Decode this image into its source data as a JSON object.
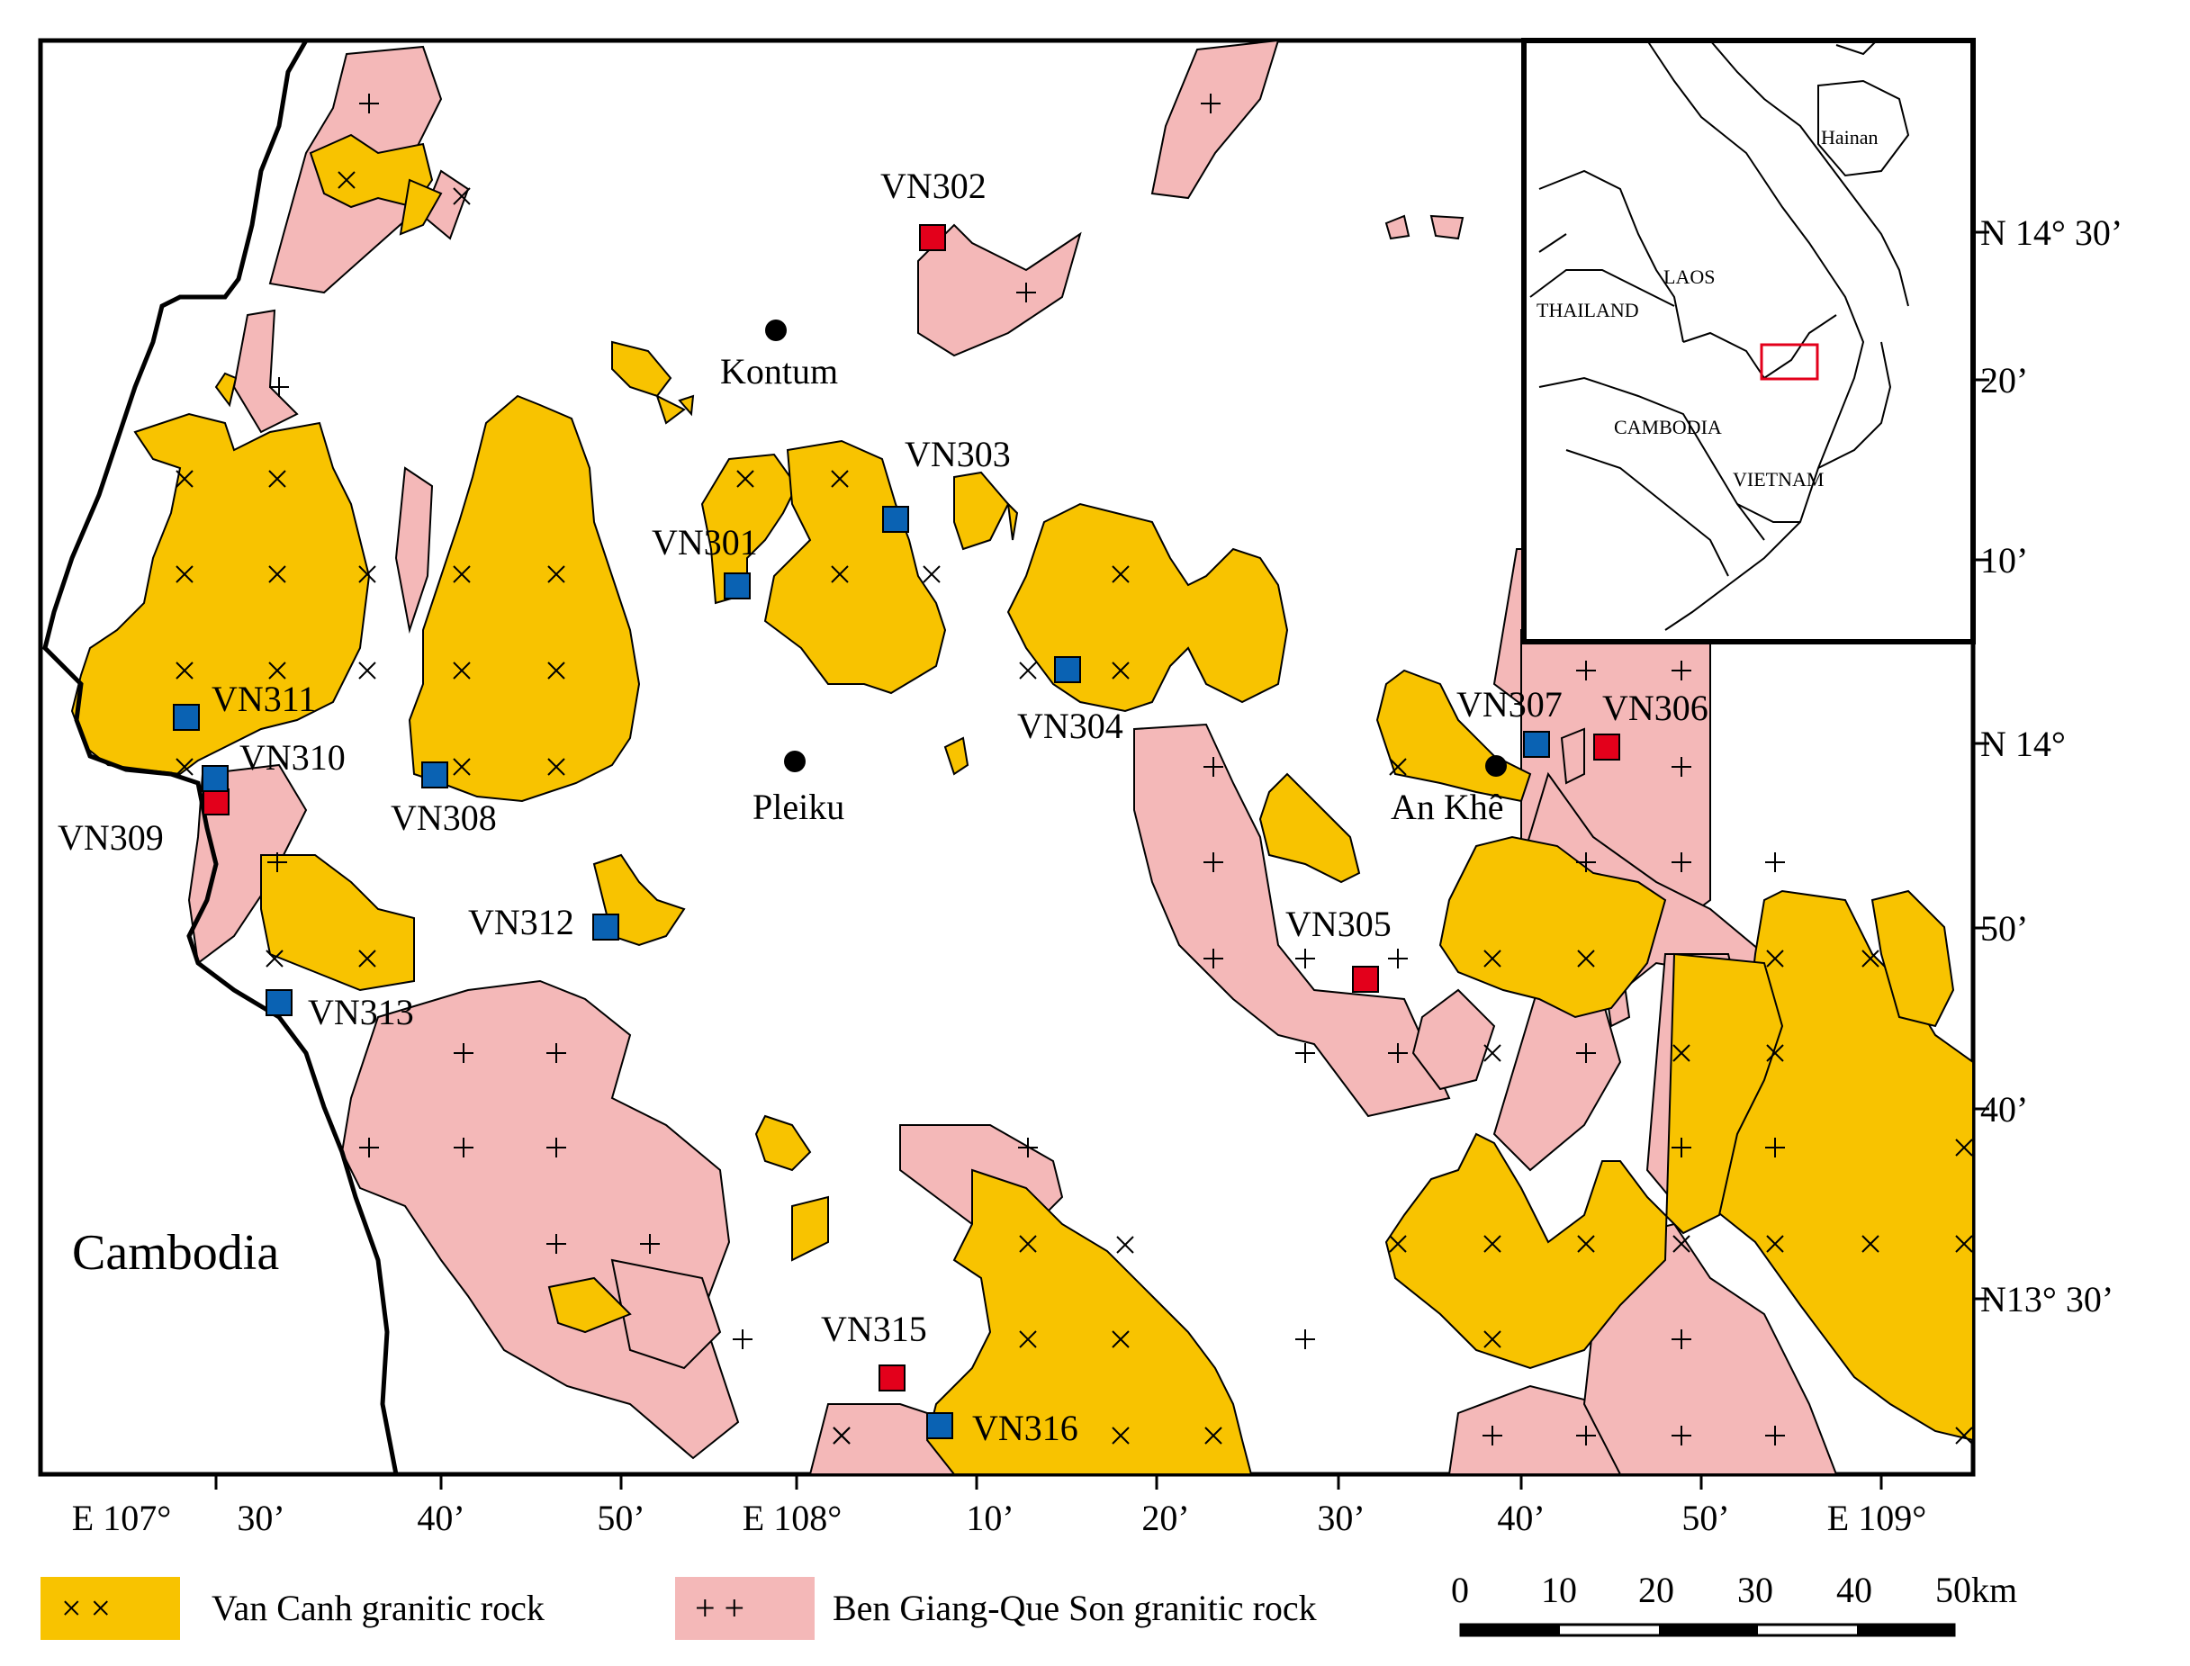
{
  "colors": {
    "van_canh": "#F8C300",
    "ben_giang": "#F4B8B8",
    "sample_red": "#E3001B",
    "sample_blue": "#0A62B3",
    "border": "#000000"
  },
  "country_label": "Cambodia",
  "towns": [
    {
      "name": "Kontum"
    },
    {
      "name": "Pleiku"
    },
    {
      "name": "An Khê"
    }
  ],
  "samples": [
    {
      "id": "VN301",
      "group": "blue"
    },
    {
      "id": "VN302",
      "group": "red"
    },
    {
      "id": "VN303",
      "group": "blue"
    },
    {
      "id": "VN304",
      "group": "blue"
    },
    {
      "id": "VN305",
      "group": "red"
    },
    {
      "id": "VN306",
      "group": "red"
    },
    {
      "id": "VN307",
      "group": "blue"
    },
    {
      "id": "VN308",
      "group": "blue"
    },
    {
      "id": "VN309",
      "group": "red"
    },
    {
      "id": "VN310",
      "group": "blue"
    },
    {
      "id": "VN311",
      "group": "blue"
    },
    {
      "id": "VN312",
      "group": "blue"
    },
    {
      "id": "VN313",
      "group": "blue"
    },
    {
      "id": "VN315",
      "group": "red"
    },
    {
      "id": "VN316",
      "group": "blue"
    }
  ],
  "lon_ticks": [
    "E 107°",
    "30’",
    "40’",
    "50’",
    "E 108°",
    "10’",
    "20’",
    "30’",
    "40’",
    "50’",
    "E 109°"
  ],
  "lat_ticks": [
    "N 14°  30’",
    "20’",
    "10’",
    "N 14°",
    "50’",
    "40’",
    "N13°  30’"
  ],
  "inset": {
    "labels": [
      "Hainan",
      "THAILAND",
      "LAOS",
      "CAMBODIA",
      "VIETNAM"
    ]
  },
  "legend": {
    "van_canh": "Van Canh granitic rock",
    "ben_giang": "Ben Giang-Que Son granitic rock",
    "van_canh_symbol": "×  ×",
    "ben_giang_symbol": "+  +"
  },
  "scale_bar": {
    "labels": [
      "0",
      "10",
      "20",
      "30",
      "40",
      "50km"
    ]
  }
}
